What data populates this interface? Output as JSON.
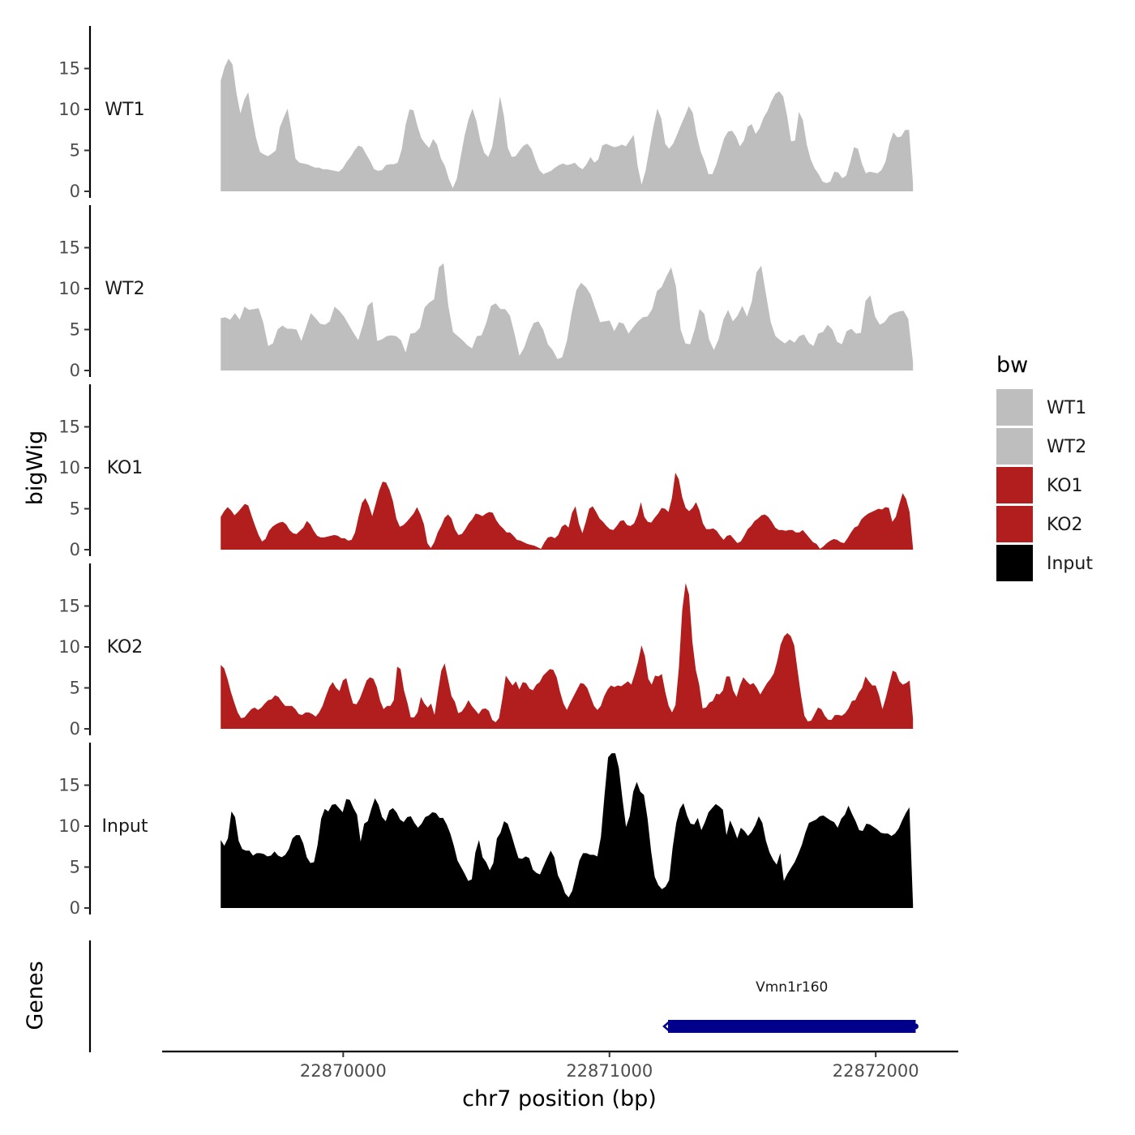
{
  "chart_data": {
    "type": "area",
    "chromosome": "chr7",
    "x_range": [
      22869540,
      22872140
    ],
    "xlim": [
      22869320,
      22872310
    ],
    "x_ticks": [
      22870000,
      22871000,
      22872000
    ],
    "x_tick_labels": [
      "22870000",
      "22871000",
      "22872000"
    ],
    "xlabel": "chr7 position (bp)",
    "ylabel": "bigWig",
    "ylim": [
      0,
      20
    ],
    "y_ticks": [
      0,
      5,
      10,
      15
    ],
    "y_tick_labels": [
      "0",
      "5",
      "10",
      "15"
    ],
    "legend": {
      "title": "bw",
      "placement": "right",
      "entries": [
        {
          "label": "WT1",
          "color": "#bebebe"
        },
        {
          "label": "WT2",
          "color": "#bebebe"
        },
        {
          "label": "KO1",
          "color": "#b21e1e"
        },
        {
          "label": "KO2",
          "color": "#b21e1e"
        },
        {
          "label": "Input",
          "color": "#000000"
        }
      ]
    },
    "series": [
      {
        "name": "WT1",
        "color": "#bebebe",
        "values": [
          13.5,
          15.2,
          16.2,
          15.5,
          12,
          9.5,
          11.2,
          12.1,
          9.1,
          6.5,
          4.8,
          4.5,
          4.3,
          4.6,
          5,
          7.8,
          9,
          10.1,
          7.3,
          4,
          3.5,
          3.4,
          3.3,
          3.1,
          2.9,
          2.9,
          2.7,
          2.7,
          2.6,
          2.5,
          2.4,
          2.8,
          3.6,
          4.2,
          5,
          5.6,
          5.4,
          4.5,
          3.7,
          2.7,
          2.5,
          2.6,
          3.2,
          3.3,
          3.3,
          3.5,
          5.1,
          8.1,
          10,
          9.9,
          8,
          6.5,
          5.8,
          5.3,
          6.4,
          5.7,
          4,
          3.1,
          1.5,
          0.4,
          1.5,
          4.2,
          6.8,
          8.8,
          10.1,
          8.6,
          6.2,
          4.7,
          4.2,
          5.4,
          8.3,
          11.6,
          9.2,
          5.3,
          4.2,
          4.3,
          5,
          5.6,
          5.8,
          5.2,
          3.8,
          2.6,
          2.1,
          2.3,
          2.5,
          2.9,
          3.2,
          3.4,
          3.2,
          3.3,
          3.5,
          3,
          2.7,
          3.3,
          4.2,
          3.5,
          3.9,
          5.6,
          5.8,
          5.6,
          5.4,
          5.5,
          5.7,
          5.5,
          6.2,
          6.9,
          3.1,
          0.8,
          2.5,
          5.2,
          7.9,
          10.1,
          8.9,
          5.8,
          5.2,
          5.8,
          6.9,
          8.1,
          9.2,
          10.4,
          9.6,
          6.9,
          4.9,
          3.7,
          2.1,
          2.1,
          3.3,
          4.9,
          6.5,
          7.3,
          7.4,
          6.7,
          5.5,
          6.2,
          7.9,
          8.2,
          7,
          7.7,
          9,
          9.8,
          11,
          11.9,
          12.2,
          11.6,
          9.2,
          6.1,
          6.2,
          9.7,
          8.7,
          5.7,
          3.9,
          2.8,
          2.1,
          1.2,
          1,
          1.2,
          2.4,
          2.3,
          1.6,
          1.9,
          3.5,
          5.4,
          5.2,
          3.4,
          2.2,
          2.4,
          2.3,
          2.2,
          2.6,
          3.6,
          5.8,
          7.2,
          6.6,
          6.7,
          7.5,
          7.5,
          0.9
        ]
      },
      {
        "name": "WT2",
        "color": "#bebebe",
        "values": [
          6.4,
          6.5,
          6.2,
          7,
          6.2,
          7.8,
          7.4,
          7.5,
          7.6,
          5.8,
          3,
          3.3,
          5,
          5.5,
          5.1,
          5.1,
          5,
          3.6,
          5.3,
          7,
          6.4,
          5.7,
          5.6,
          6,
          7.8,
          7.3,
          6.6,
          5.6,
          4.6,
          3.7,
          5.6,
          7.9,
          8.4,
          3.6,
          3.8,
          4.2,
          4.3,
          4.2,
          3.7,
          2.2,
          4.5,
          4.6,
          5.2,
          7.7,
          8.3,
          8.7,
          12.6,
          13.1,
          7.9,
          4.7,
          4.2,
          3.7,
          3.1,
          2.7,
          4.2,
          4.3,
          5.8,
          7.9,
          8.2,
          7.5,
          7.5,
          6.7,
          4.4,
          1.8,
          2.8,
          4.5,
          5.8,
          6,
          5,
          3.2,
          2.5,
          1.4,
          1.6,
          3.6,
          7,
          9.8,
          10.7,
          10.2,
          9.3,
          7.6,
          5.9,
          6,
          6.1,
          4.8,
          5.9,
          5.7,
          4.5,
          5.3,
          6,
          6.5,
          6.6,
          7.5,
          9.7,
          10.2,
          11.5,
          12.6,
          10.3,
          5,
          3.3,
          3.2,
          5.1,
          7.5,
          6.9,
          3.8,
          2.5,
          3.8,
          6.2,
          7.4,
          6,
          6.7,
          7.9,
          6.6,
          8.4,
          12,
          12.8,
          9.3,
          5.9,
          4.2,
          3.7,
          3.3,
          3.8,
          3.4,
          4.2,
          4.4,
          3.4,
          3,
          4.5,
          4.7,
          5.6,
          5,
          3.5,
          3.2,
          4.8,
          5.1,
          4.5,
          4.6,
          8.5,
          9.2,
          6.6,
          5.6,
          5.9,
          6.7,
          7,
          7.2,
          7.3,
          6.3,
          1
        ]
      },
      {
        "name": "KO1",
        "color": "#b21e1e",
        "values": [
          4,
          4.7,
          5.2,
          4.8,
          4.2,
          4.6,
          5.1,
          5.6,
          5.4,
          4.1,
          2.9,
          1.8,
          1,
          1.3,
          2.3,
          2.8,
          3.1,
          3.3,
          3.4,
          3.1,
          2.4,
          2,
          1.9,
          2.3,
          2.7,
          3.5,
          3.1,
          2.3,
          1.7,
          1.5,
          1.5,
          1.6,
          1.7,
          1.8,
          1.7,
          1.4,
          1.4,
          1.1,
          1.2,
          2.1,
          4,
          5.7,
          6.3,
          5.4,
          4.1,
          5.6,
          7.2,
          8.3,
          8.2,
          7.3,
          5.9,
          3.8,
          2.8,
          3,
          3.4,
          3.9,
          4.4,
          5.2,
          4.3,
          3.1,
          0.8,
          0.2,
          0.9,
          2.1,
          2.9,
          3.9,
          4.3,
          3.8,
          2.5,
          1.8,
          1.9,
          2.5,
          3.2,
          3.7,
          4.4,
          4.3,
          4.1,
          4.4,
          4.6,
          4.5,
          3.6,
          3,
          2.6,
          2.1,
          2.1,
          1.7,
          1.2,
          1.1,
          0.9,
          0.7,
          0.6,
          0.5,
          0.3,
          0.1,
          0.9,
          1.5,
          1.6,
          1.4,
          1.8,
          2.8,
          3.1,
          2.7,
          4.5,
          5.3,
          3.2,
          2,
          3.4,
          5,
          5.3,
          4.6,
          3.8,
          3.4,
          2.9,
          2.5,
          2.4,
          2.9,
          3.5,
          3.6,
          3,
          2.9,
          3.2,
          4.2,
          5.8,
          4,
          3.4,
          3.3,
          3.9,
          4.4,
          5.1,
          5,
          4.6,
          6.3,
          9.4,
          8.6,
          6.4,
          5.1,
          4.7,
          5.1,
          5.8,
          4.8,
          3.2,
          2.5,
          2.5,
          2.6,
          2.3,
          1.7,
          1.2,
          1.7,
          1.8,
          1.3,
          0.8,
          1,
          1.7,
          2.5,
          2.9,
          3.5,
          3.8,
          4.2,
          4.3,
          4,
          3.4,
          2.7,
          2.4,
          2.4,
          2.3,
          2.4,
          2.4,
          2.1,
          2.1,
          2.4,
          1.9,
          1.4,
          0.9,
          0.7,
          0.1,
          0.4,
          0.8,
          1.1,
          1.3,
          1.2,
          0.9,
          0.8,
          1.4,
          2.1,
          2.7,
          2.9,
          3.7,
          4.1,
          4.4,
          4.6,
          4.8,
          5,
          4.9,
          5.2,
          5.1,
          3.4,
          4,
          5.5,
          6.9,
          6.2,
          4.6,
          0.2
        ]
      },
      {
        "name": "KO2",
        "color": "#b21e1e",
        "values": [
          7.8,
          7.4,
          6.1,
          4.5,
          3.2,
          2,
          1.3,
          1.4,
          1.9,
          2.4,
          2.6,
          2.3,
          2.6,
          3.1,
          3.5,
          3.6,
          4.1,
          3.9,
          3.3,
          2.8,
          2.8,
          2.8,
          2.4,
          1.8,
          1.7,
          2,
          2,
          1.8,
          1.5,
          2,
          2.8,
          4,
          5.1,
          5.7,
          5,
          4.6,
          5.9,
          6.2,
          4.5,
          3.1,
          3,
          3.7,
          4.8,
          5.9,
          6.3,
          6.1,
          5.1,
          3.4,
          2.4,
          2.8,
          2.8,
          3.5,
          7.6,
          7.3,
          4.7,
          3.2,
          1.4,
          1.4,
          2,
          3.9,
          3.1,
          2.6,
          3.1,
          1.7,
          4.5,
          7.1,
          8,
          6,
          4,
          3.3,
          1.9,
          2.1,
          2.7,
          3.5,
          2.8,
          2.3,
          1.8,
          2.4,
          2.5,
          2.2,
          1.1,
          0.8,
          1.3,
          3.7,
          6.5,
          5.9,
          5.3,
          5.8,
          4.8,
          5.7,
          5.6,
          4.9,
          4.7,
          5.4,
          5.7,
          6.5,
          6.9,
          7.3,
          7.2,
          6.3,
          4.5,
          3.1,
          2.3,
          3.2,
          4,
          4.8,
          5.6,
          5.5,
          5,
          3.9,
          2.8,
          2.3,
          2.8,
          4,
          4.8,
          5.3,
          5.1,
          5.3,
          5.2,
          5.5,
          5.8,
          5.4,
          6.7,
          8.2,
          10.2,
          8.9,
          6.1,
          5.4,
          6.5,
          6.4,
          6.7,
          4.5,
          2.8,
          2,
          2.9,
          7.4,
          14.5,
          17.8,
          16.4,
          10.6,
          7.2,
          5.4,
          2.5,
          2.6,
          3.2,
          3.4,
          4.3,
          4.2,
          4.7,
          6.4,
          6.4,
          4.7,
          3.9,
          5.3,
          6.3,
          5.8,
          5.4,
          5.6,
          5,
          4.2,
          4.9,
          5.6,
          6.1,
          6.8,
          8.3,
          10.3,
          11.3,
          11.7,
          11.3,
          10.2,
          7.1,
          4.1,
          1.6,
          0.9,
          1,
          1.8,
          2.6,
          2.4,
          1.6,
          1.1,
          1.1,
          1.7,
          1.7,
          1.6,
          1.9,
          2.5,
          3.4,
          3.5,
          4.4,
          5,
          6.4,
          5.8,
          5.3,
          5.3,
          4.1,
          2.4,
          3.8,
          5.5,
          7.1,
          6.9,
          5.8,
          5.4,
          5.6,
          5.9,
          1.2
        ]
      },
      {
        "name": "Input",
        "color": "#000000",
        "values": [
          8.3,
          7.6,
          8.5,
          11.8,
          11.1,
          8.2,
          7.2,
          7,
          7,
          6.4,
          6.7,
          6.7,
          6.6,
          6.3,
          6.4,
          6.9,
          6.4,
          6.2,
          6.5,
          7.2,
          8.5,
          8.9,
          8.9,
          7.9,
          6.2,
          5.5,
          5.6,
          7.7,
          10.9,
          12.1,
          11.8,
          12.6,
          12.7,
          12.2,
          11.7,
          13.3,
          13.2,
          12.2,
          11.4,
          8.1,
          10.3,
          10.6,
          12.1,
          13.4,
          12.6,
          11.1,
          10.6,
          11.9,
          12.2,
          11.7,
          10.8,
          10.5,
          11.1,
          11.2,
          10.4,
          9.8,
          10.3,
          11.1,
          11.3,
          11.7,
          11.6,
          11,
          11,
          10.2,
          9.1,
          7.6,
          5.8,
          5,
          4.2,
          3.3,
          3.5,
          6.8,
          8.3,
          6.2,
          5.6,
          4.6,
          5.5,
          8.5,
          9.2,
          10.6,
          10.3,
          9,
          7.5,
          6.1,
          6,
          6.3,
          6.1,
          4.7,
          4.3,
          4.1,
          5.1,
          6.1,
          7,
          6.2,
          4,
          3.1,
          1.8,
          1.3,
          2.1,
          3.9,
          5.8,
          6.7,
          6.7,
          6.5,
          6.5,
          6.3,
          8.7,
          13.8,
          18.4,
          18.9,
          18.9,
          17.1,
          13.3,
          9.9,
          11.2,
          14.2,
          15.4,
          14.2,
          13.8,
          10.9,
          6.9,
          3.8,
          2.8,
          2.3,
          2.6,
          3.4,
          7.4,
          10.4,
          12.1,
          12.8,
          11.3,
          10.3,
          10.2,
          11,
          9.5,
          10.5,
          11.7,
          12.2,
          12.7,
          12.4,
          12,
          8.9,
          10.7,
          9.7,
          8.5,
          9.8,
          9.4,
          8.8,
          9.3,
          10.1,
          11.2,
          10.4,
          8.2,
          6.8,
          5.9,
          5.3,
          6.7,
          3.3,
          4.2,
          4.9,
          5.6,
          6.6,
          7.7,
          9.2,
          10.4,
          10.6,
          10.8,
          11.2,
          11.3,
          11,
          10.7,
          10.5,
          9.8,
          10.9,
          11.4,
          12.5,
          11.5,
          10.6,
          9.5,
          9.4,
          10.3,
          10.2,
          9.9,
          9.6,
          9.2,
          9.1,
          9.1,
          8.8,
          9.1,
          9.7,
          10.7,
          11.6,
          12.3,
          0.4
        ]
      }
    ],
    "genes_track": {
      "ylabel": "Genes",
      "genes": [
        {
          "name": "Vmn1r160",
          "start": 22871220,
          "end": 22872150,
          "strand": "-",
          "color": "#00008b"
        }
      ]
    }
  }
}
